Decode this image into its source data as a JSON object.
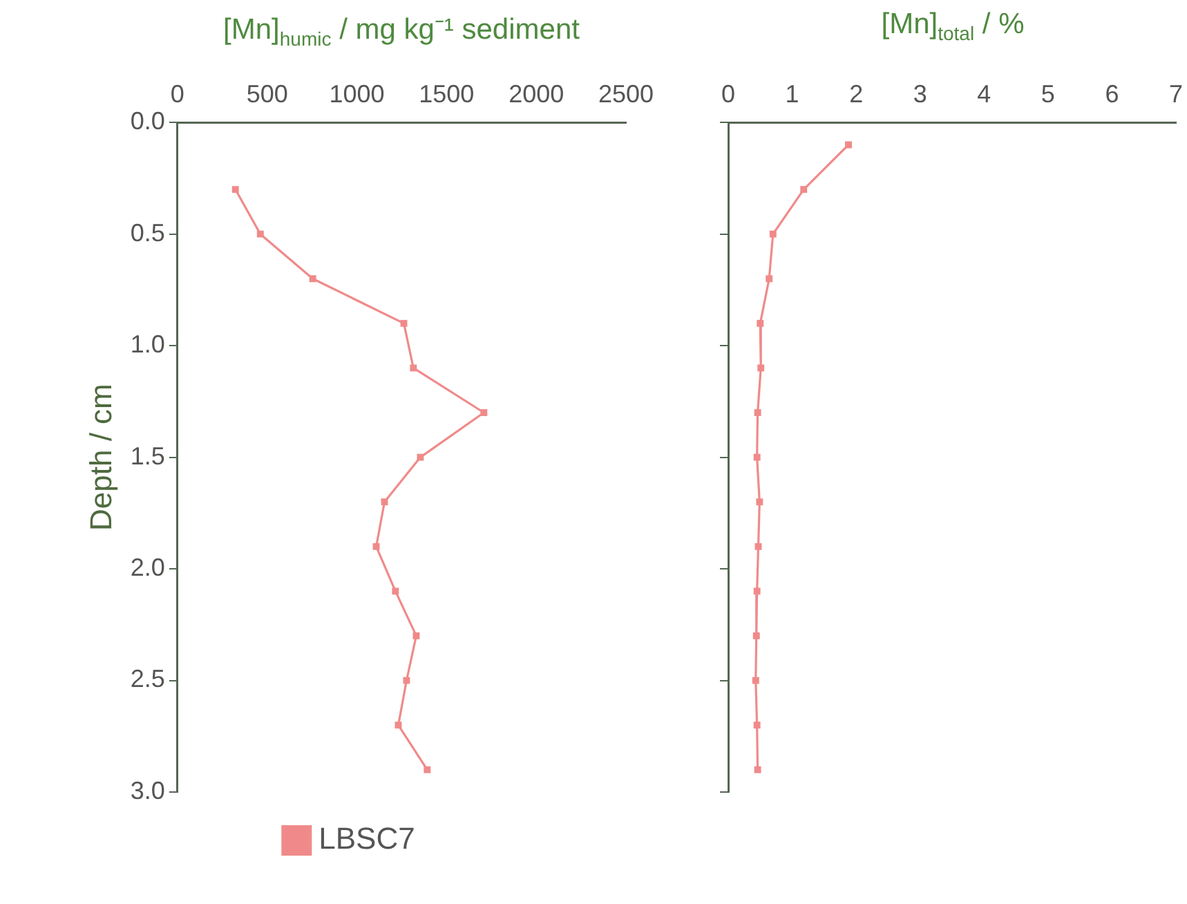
{
  "chart_data": [
    {
      "type": "line",
      "xlabel": "[Mn]$_{humic}$ / mg kg⁻¹ sediment",
      "ylabel": "Depth / cm",
      "xlim": [
        0,
        2500
      ],
      "xticks": [
        0,
        500,
        1000,
        1500,
        2000,
        2500
      ],
      "ylim": [
        3,
        0
      ],
      "yticks": [
        {
          "value": 0,
          "label": "0.0"
        },
        {
          "value": 0.5,
          "label": "0.5"
        },
        {
          "value": 1,
          "label": "1.0"
        },
        {
          "value": 1.5,
          "label": "1.5"
        },
        {
          "value": 2,
          "label": "2.0"
        },
        {
          "value": 2.5,
          "label": "2.5"
        },
        {
          "value": 3,
          "label": "3.0"
        }
      ],
      "marker": "square",
      "legend": "bottom",
      "series": [
        {
          "name": "LBSC7",
          "color": "#f08a8a",
          "x": [
            323,
            462,
            754,
            1262,
            1315,
            1708,
            1354,
            1154,
            1108,
            1215,
            1331,
            1277,
            1231,
            1392
          ],
          "values": [
            0.3,
            0.5,
            0.7,
            0.9,
            1.1,
            1.3,
            1.5,
            1.7,
            1.9,
            2.1,
            2.3,
            2.5,
            2.7,
            2.9
          ]
        }
      ]
    },
    {
      "type": "line",
      "xlabel": "[Mn]$_{total}$ / %",
      "xlim": [
        0,
        7
      ],
      "xticks": [
        0,
        1,
        2,
        3,
        4,
        5,
        6,
        7
      ],
      "ylim": [
        3,
        0
      ],
      "yticks": [
        {
          "value": 0,
          "label": null
        },
        {
          "value": 0.5,
          "label": null
        },
        {
          "value": 1,
          "label": null
        },
        {
          "value": 1.5,
          "label": null
        },
        {
          "value": 2,
          "label": null
        },
        {
          "value": 2.5,
          "label": null
        },
        {
          "value": 3,
          "label": null
        }
      ],
      "marker": "square",
      "tick_labels": "x",
      "series": [
        {
          "color": "#f08a8a",
          "x": [
            1.88,
            1.18,
            0.7,
            0.64,
            0.5,
            0.51,
            0.46,
            0.45,
            0.49,
            0.47,
            0.45,
            0.44,
            0.43,
            0.45,
            0.46
          ],
          "values": [
            0.1,
            0.3,
            0.5,
            0.7,
            0.9,
            1.1,
            1.3,
            1.5,
            1.7,
            1.9,
            2.1,
            2.3,
            2.5,
            2.7,
            2.9
          ]
        }
      ]
    }
  ]
}
